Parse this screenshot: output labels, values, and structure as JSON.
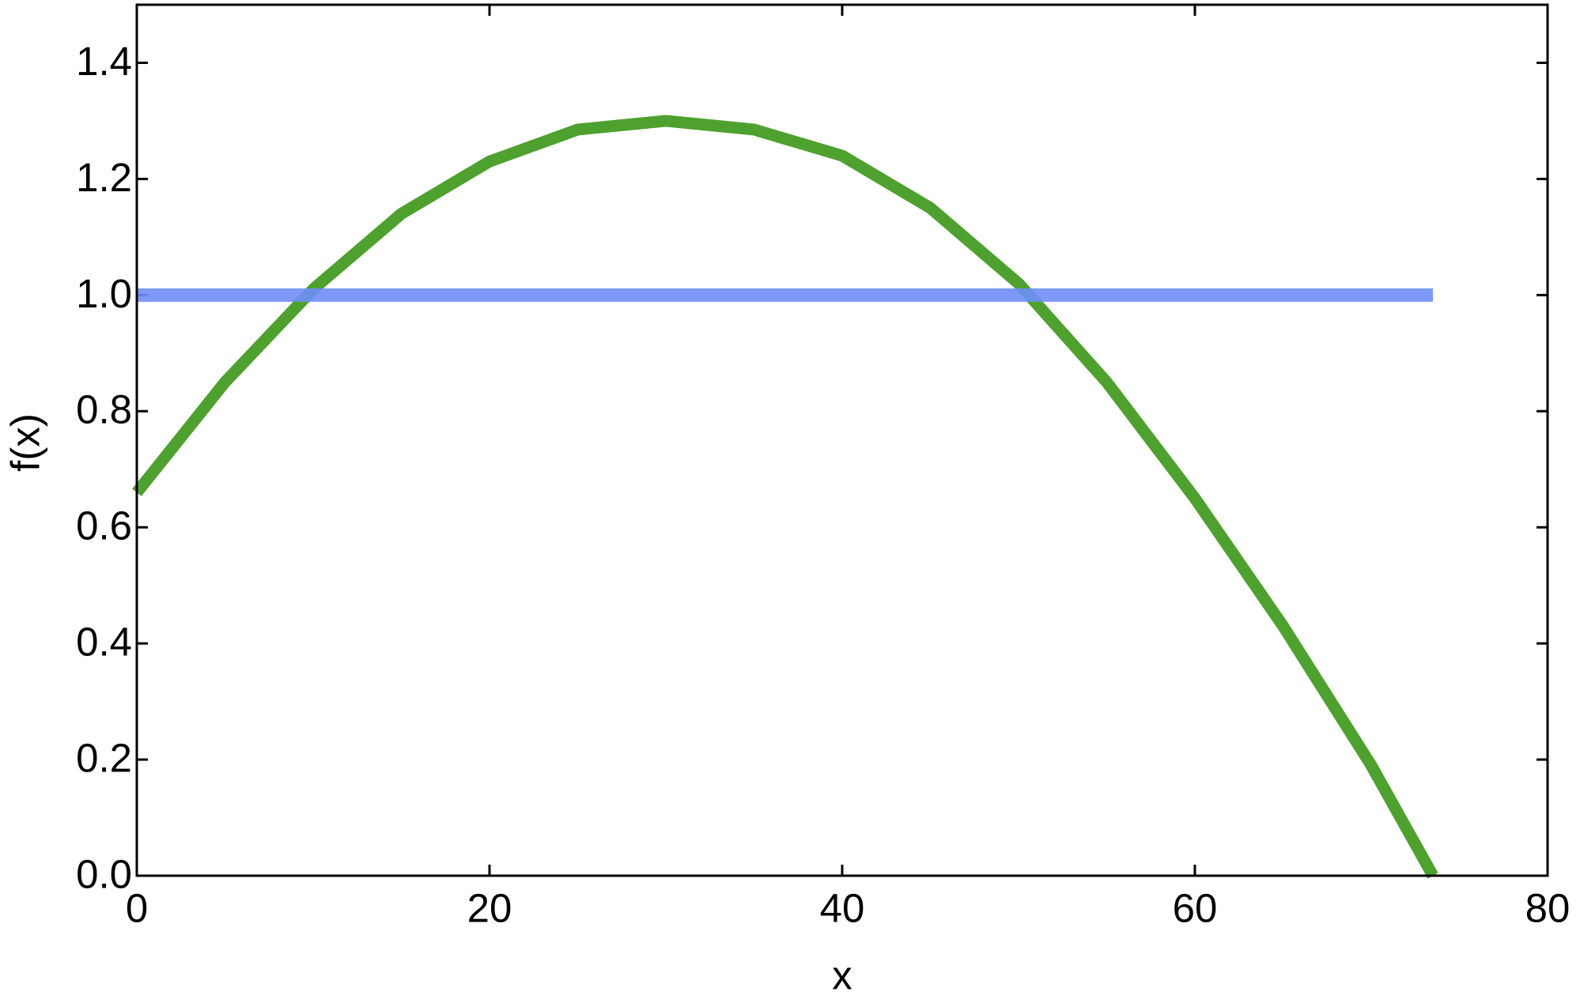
{
  "chart_data": {
    "type": "line",
    "xlabel": "x",
    "ylabel": "f(x)",
    "xlim": [
      0,
      80
    ],
    "ylim": [
      0,
      1.5
    ],
    "xticks": [
      0,
      20,
      40,
      60,
      80
    ],
    "yticks": [
      {
        "value": 0,
        "label": "0.0"
      },
      {
        "value": 0.2,
        "label": "0.2"
      },
      {
        "value": 0.4,
        "label": "0.4"
      },
      {
        "value": 0.6,
        "label": "0.6"
      },
      {
        "value": 0.8,
        "label": "0.8"
      },
      {
        "value": 1,
        "label": "1.0"
      },
      {
        "value": 1.2,
        "label": "1.2"
      },
      {
        "value": 1.4,
        "label": "1.4"
      }
    ],
    "series": [
      {
        "color": "#4ea12e",
        "x": [
          0,
          5,
          10,
          15,
          20,
          25,
          30,
          35,
          40,
          45,
          50,
          55,
          60,
          65,
          70,
          73.5
        ],
        "values": [
          0.66,
          0.85,
          1.01,
          1.14,
          1.23,
          1.285,
          1.3,
          1.285,
          1.24,
          1.15,
          1.02,
          0.85,
          0.65,
          0.43,
          0.19,
          0
        ]
      },
      {
        "color": "#6e8ef7",
        "x": [
          0,
          73.5
        ],
        "values": [
          1,
          1
        ]
      }
    ]
  }
}
